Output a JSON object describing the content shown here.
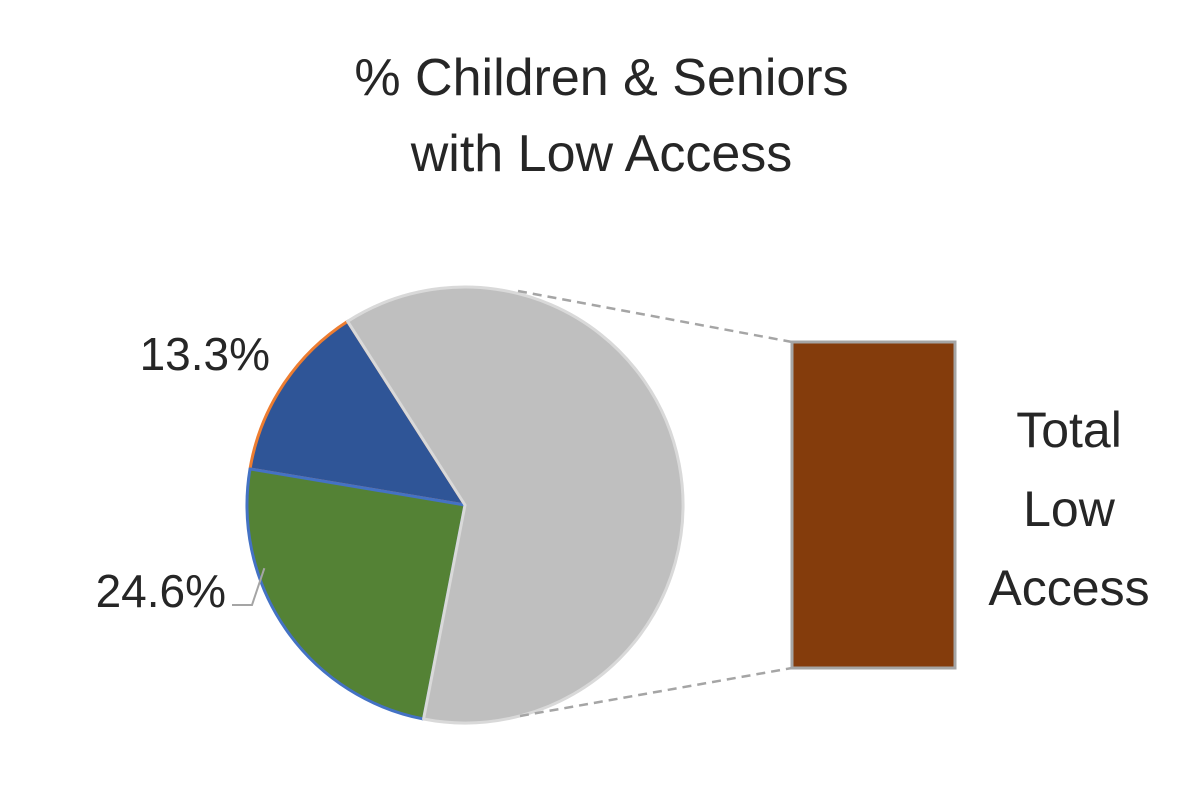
{
  "chart_data": {
    "type": "pie",
    "subtype": "pie-of-pie (bar of pie)",
    "title": "% Children & Seniors\nwith Low Access",
    "slices": [
      {
        "label": "",
        "value": 13.3,
        "value_label": "13.3%",
        "color": "#2F5597",
        "edge_color": "#ED7D31"
      },
      {
        "label": "",
        "value": 24.6,
        "value_label": "24.6%",
        "color": "#548235",
        "edge_color": "#4472C4"
      },
      {
        "label": "",
        "value": 62.1,
        "value_label": "",
        "color": "#BFBFBF",
        "edge_color": "#D9D9D9"
      }
    ],
    "secondary_bar": {
      "label": "Total\nLow\nAccess",
      "color": "#843C0C",
      "edge_color": "#A5A5A5"
    },
    "connector_color": "#A5A5A5",
    "legend": "none"
  }
}
